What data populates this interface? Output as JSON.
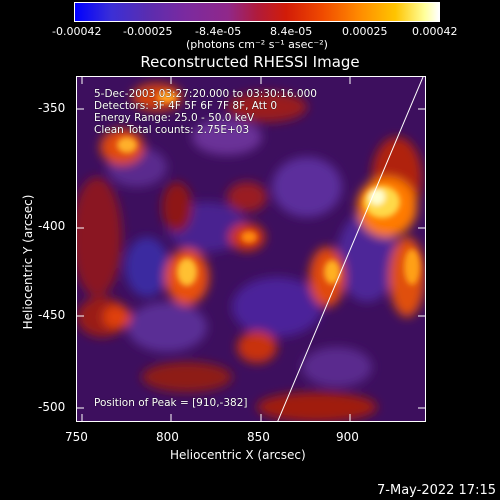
{
  "colorbar": {
    "ticks": [
      "-0.00042",
      "-0.00025",
      "-8.4e-05",
      "8.4e-05",
      "0.00025",
      "0.00042"
    ],
    "units": "(photons cm⁻² s⁻¹ asec⁻²)"
  },
  "title": "Reconstructed RHESSI Image",
  "info": {
    "line1": "5-Dec-2003 03:27:20.000 to 03:30:16.000",
    "line2": "Detectors: 3F 4F 5F 6F 7F 8F, Att 0",
    "line3": "Energy Range: 25.0 - 50.0 keV",
    "line4": "Clean     Total counts: 2.75E+03",
    "peak": "Position of Peak = [910,-382]"
  },
  "axes": {
    "xlabel": "Heliocentric X (arcsec)",
    "ylabel": "Heliocentric Y (arcsec)",
    "xticks": [
      "750",
      "800",
      "850",
      "900"
    ],
    "yticks": [
      "-350",
      "-400",
      "-450",
      "-500"
    ]
  },
  "datestamp": "7-May-2022 17:15",
  "colors": {
    "background": "#000000",
    "text": "#ffffff",
    "limb": "#ffffff"
  }
}
